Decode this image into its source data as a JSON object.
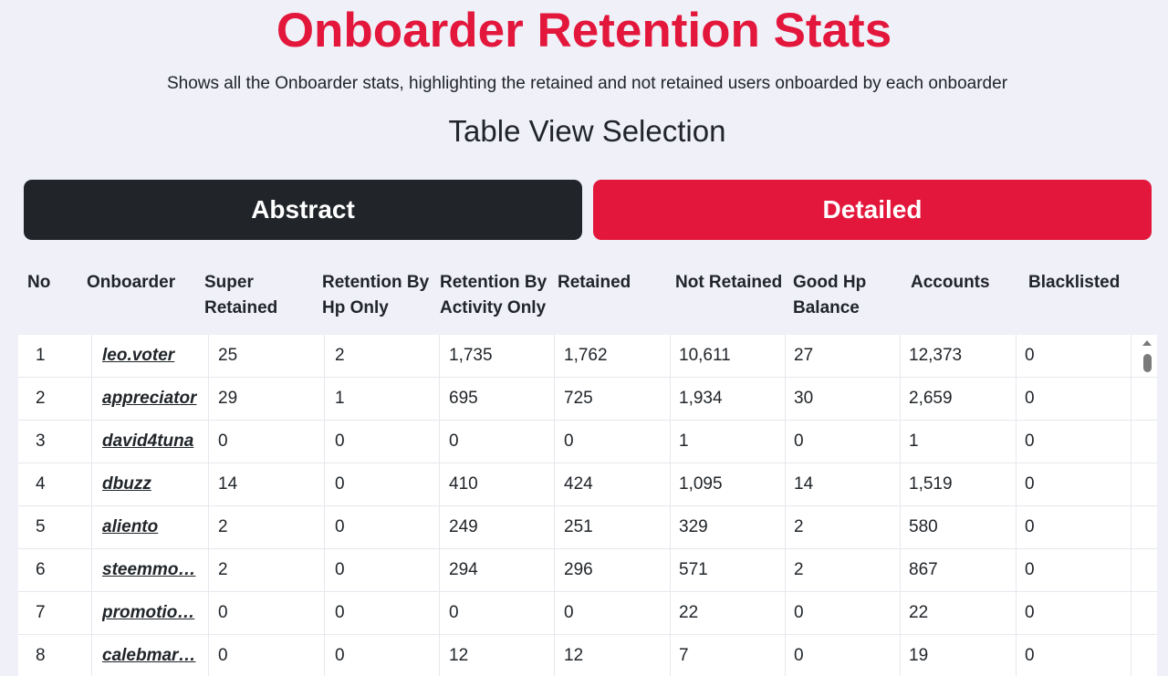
{
  "header": {
    "title": "Onboarder Retention Stats",
    "subtitle": "Shows all the Onboarder stats, highlighting the retained and not retained users onboarded by each onboarder"
  },
  "view_selection": {
    "title": "Table View Selection",
    "abstract_label": "Abstract",
    "detailed_label": "Detailed",
    "selected": "Detailed"
  },
  "table": {
    "headers": [
      "No",
      "Onboarder",
      "Super Retained",
      "Retention By Hp Only",
      "Retention By Activity Only",
      "Retained",
      "Not Retained",
      "Good Hp Balance",
      "Accounts",
      "Blacklisted"
    ],
    "rows": [
      {
        "no": "1",
        "onboarder": "leo.voter",
        "super_retained": "25",
        "retention_hp": "2",
        "retention_activity": "1,735",
        "retained": "1,762",
        "not_retained": "10,611",
        "good_hp": "27",
        "accounts": "12,373",
        "blacklisted": "0"
      },
      {
        "no": "2",
        "onboarder": "appreciator",
        "super_retained": "29",
        "retention_hp": "1",
        "retention_activity": "695",
        "retained": "725",
        "not_retained": "1,934",
        "good_hp": "30",
        "accounts": "2,659",
        "blacklisted": "0"
      },
      {
        "no": "3",
        "onboarder": "david4tuna",
        "super_retained": "0",
        "retention_hp": "0",
        "retention_activity": "0",
        "retained": "0",
        "not_retained": "1",
        "good_hp": "0",
        "accounts": "1",
        "blacklisted": "0"
      },
      {
        "no": "4",
        "onboarder": "dbuzz",
        "super_retained": "14",
        "retention_hp": "0",
        "retention_activity": "410",
        "retained": "424",
        "not_retained": "1,095",
        "good_hp": "14",
        "accounts": "1,519",
        "blacklisted": "0"
      },
      {
        "no": "5",
        "onboarder": "aliento",
        "super_retained": "2",
        "retention_hp": "0",
        "retention_activity": "249",
        "retained": "251",
        "not_retained": "329",
        "good_hp": "2",
        "accounts": "580",
        "blacklisted": "0"
      },
      {
        "no": "6",
        "onboarder": "steemmo…",
        "super_retained": "2",
        "retention_hp": "0",
        "retention_activity": "294",
        "retained": "296",
        "not_retained": "571",
        "good_hp": "2",
        "accounts": "867",
        "blacklisted": "0"
      },
      {
        "no": "7",
        "onboarder": "promotio…",
        "super_retained": "0",
        "retention_hp": "0",
        "retention_activity": "0",
        "retained": "0",
        "not_retained": "22",
        "good_hp": "0",
        "accounts": "22",
        "blacklisted": "0"
      },
      {
        "no": "8",
        "onboarder": "calebmar…",
        "super_retained": "0",
        "retention_hp": "0",
        "retention_activity": "12",
        "retained": "12",
        "not_retained": "7",
        "good_hp": "0",
        "accounts": "19",
        "blacklisted": "0"
      }
    ]
  },
  "colors": {
    "accent": "#e3163b",
    "dark": "#212529",
    "background": "#eff0f8"
  }
}
